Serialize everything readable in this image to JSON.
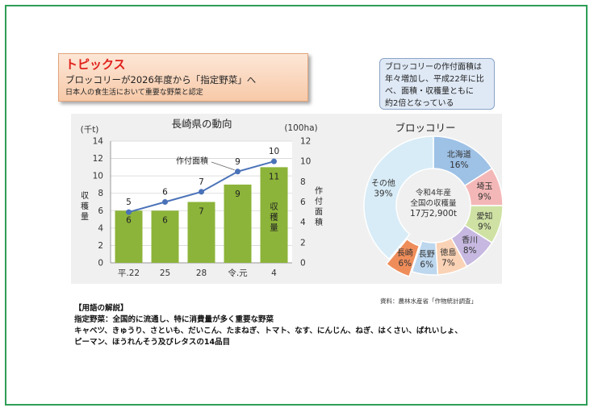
{
  "topics": {
    "title": "トピックス",
    "headline": "ブロッコリーが2026年度から「指定野菜」へ",
    "subline": "日本人の食生活において重要な野菜と認定"
  },
  "callout": {
    "text": [
      "ブロッコリーの作付面積は",
      "年々増加し、平成22年に比",
      "べ、面積・収穫量ともに",
      "約2倍となっている"
    ]
  },
  "source": "資料：農林水産省「作物統計調査」",
  "notes": {
    "heading": "【用語の解説】",
    "lines": [
      "指定野菜：全国的に流通し、特に消費量が多く重要な野菜",
      "キャベツ、きゅうり、さといも、だいこん、たまねぎ、トマト、なす、にんじん、ねぎ、はくさい、ばれいしょ、",
      "ピーマン、ほうれんそう及びレタスの14品目"
    ]
  },
  "chart_data": [
    {
      "type": "bar",
      "title": "長崎県の動向",
      "categories": [
        "平.22",
        "25",
        "28",
        "令.元",
        "4"
      ],
      "series": [
        {
          "name": "収穫量",
          "type": "bar",
          "axis": "left",
          "values": [
            6,
            6,
            7,
            9,
            11
          ],
          "color": "#8cb43a"
        },
        {
          "name": "作付面積",
          "type": "line",
          "axis": "right",
          "values": [
            5,
            6,
            7,
            9,
            10
          ],
          "color": "#4a72b8"
        }
      ],
      "y_left": {
        "label": "収穫量",
        "unit": "(千t)",
        "ylim": [
          0,
          14
        ],
        "ticks": [
          0,
          2,
          4,
          6,
          8,
          10,
          12,
          14
        ]
      },
      "y_right": {
        "label": "作付面積",
        "unit": "(100ha)",
        "ylim": [
          0,
          12
        ],
        "ticks": [
          0,
          2,
          4,
          6,
          8,
          10,
          12
        ]
      },
      "line_label": "作付面積",
      "bar_label": "収穫量",
      "grid": true
    },
    {
      "type": "pie",
      "title": "ブロッコリー",
      "center_text": [
        "令和4年産",
        "全国の収穫量",
        "17万2,900t"
      ],
      "slices": [
        {
          "label": "北海道",
          "value": 16,
          "display": "16%",
          "color": "#9ec1e6"
        },
        {
          "label": "埼玉",
          "value": 9,
          "display": "9%",
          "color": "#f4b7b7"
        },
        {
          "label": "愛知",
          "value": 9,
          "display": "9%",
          "color": "#cfe2a4"
        },
        {
          "label": "香川",
          "value": 8,
          "display": "8%",
          "color": "#c6b8e0"
        },
        {
          "label": "徳島",
          "value": 7,
          "display": "7%",
          "color": "#fad2b5"
        },
        {
          "label": "長野",
          "value": 6,
          "display": "6%",
          "color": "#bdd7ee"
        },
        {
          "label": "長崎",
          "value": 6,
          "display": "6%",
          "color": "#ef8d5a",
          "highlight": true
        },
        {
          "label": "その他",
          "value": 39,
          "display": "39%",
          "color": "#d8ecf7"
        }
      ]
    }
  ]
}
